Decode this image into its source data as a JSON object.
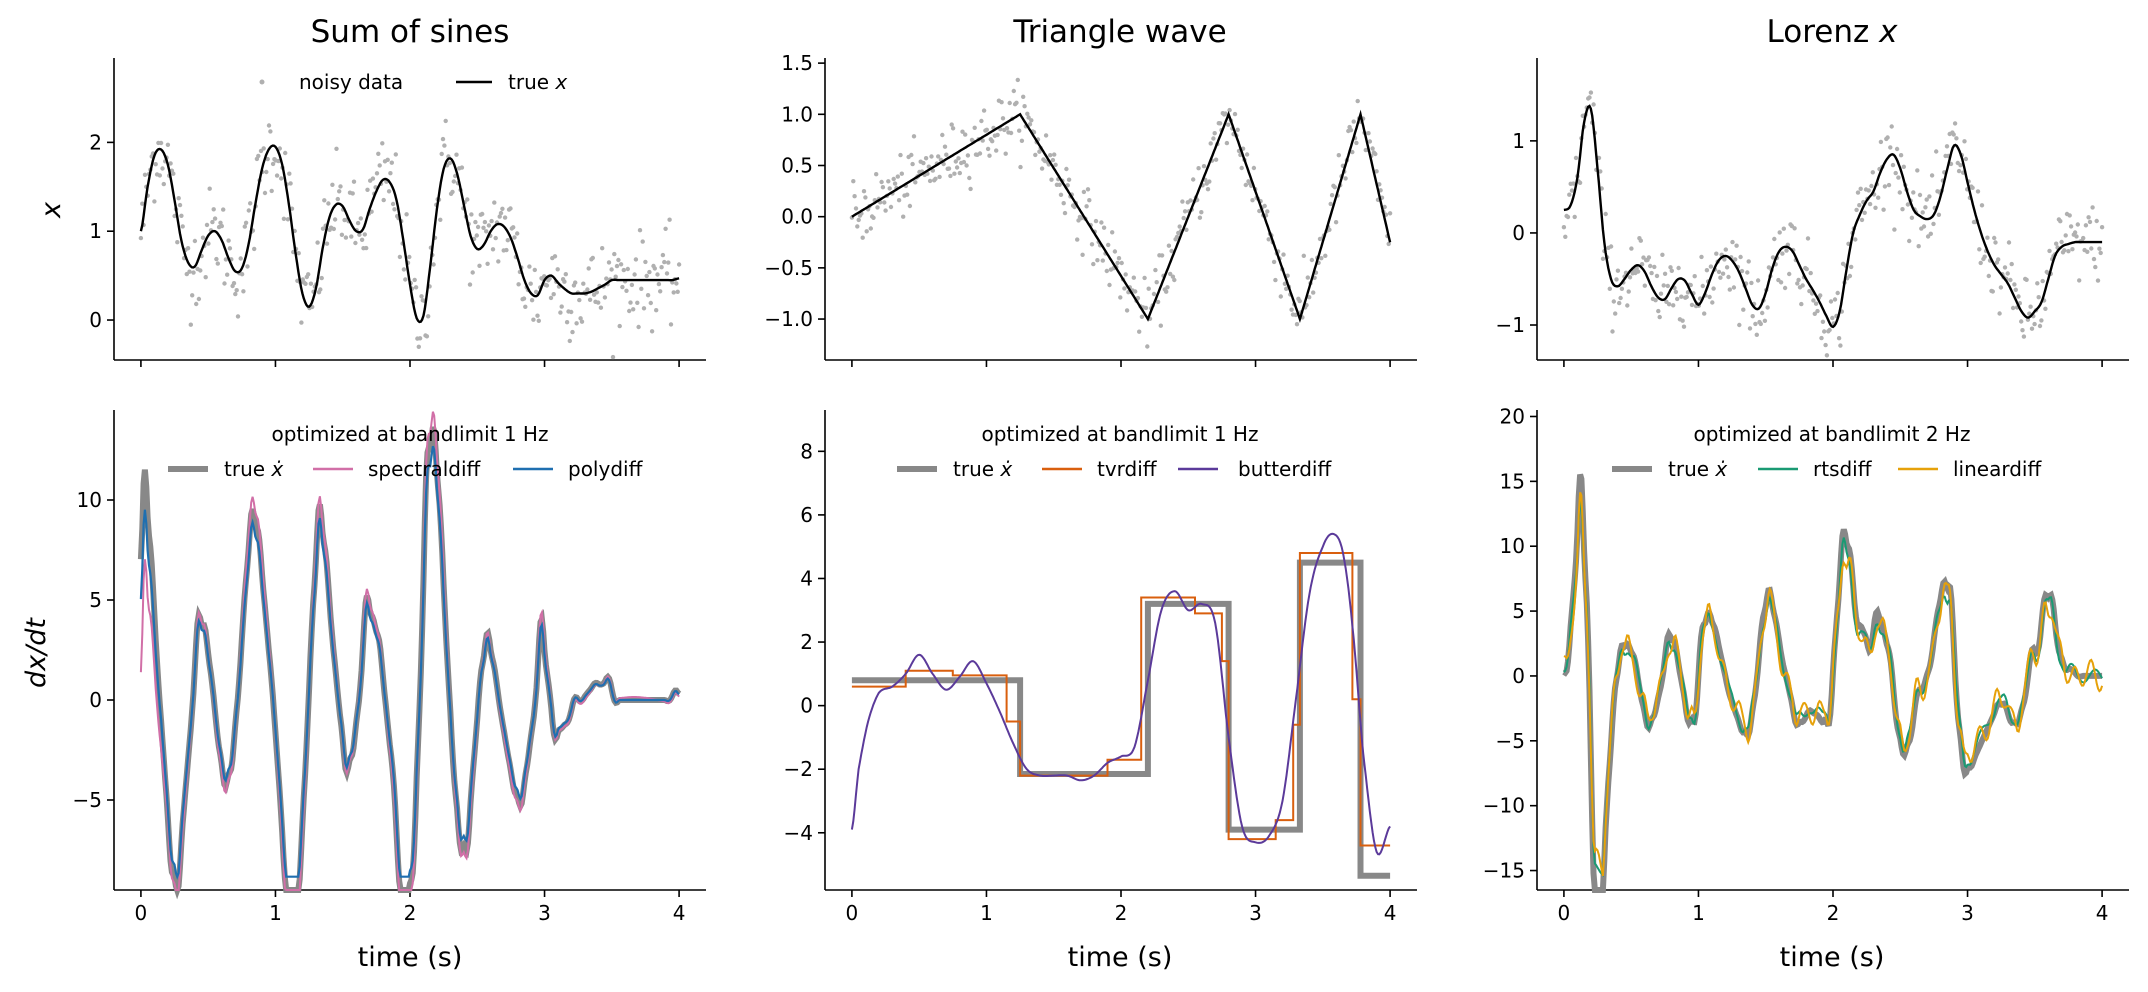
{
  "chart_data": [
    {
      "id": "sum-of-sines-x",
      "type": "line",
      "title": "Sum of sines",
      "ylabel": "x",
      "xlabel": "",
      "xlim": [
        -0.2,
        4.2
      ],
      "ylim": [
        -0.45,
        2.95
      ],
      "xticks": [
        0,
        1,
        2,
        3,
        4
      ],
      "xticklabels_visible": false,
      "yticks": [
        0,
        1,
        2
      ],
      "legend": {
        "placement": "top-center",
        "title": ""
      },
      "series": [
        {
          "name": "noisy data",
          "kind": "scatter",
          "color": "#b0b0b0",
          "note": "noisy samples scattered around true x",
          "function": "sum_of_sines",
          "noise": 0.25
        },
        {
          "name": "true x",
          "kind": "line",
          "color": "#000000",
          "x": [
            0,
            0.05,
            0.1,
            0.15,
            0.2,
            0.25,
            0.3,
            0.35,
            0.4,
            0.45,
            0.5,
            0.55,
            0.6,
            0.65,
            0.7,
            0.75,
            0.8,
            0.85,
            0.9,
            0.95,
            1.0,
            1.05,
            1.1,
            1.15,
            1.2,
            1.25,
            1.3,
            1.35,
            1.4,
            1.45,
            1.5,
            1.55,
            1.6,
            1.65,
            1.7,
            1.75,
            1.8,
            1.85,
            1.9,
            1.95,
            2.0,
            2.05,
            2.1,
            2.15,
            2.2,
            2.25,
            2.3,
            2.35,
            2.4,
            2.45,
            2.5,
            2.55,
            2.6,
            2.65,
            2.7,
            2.75,
            2.8,
            2.85,
            2.9,
            2.95,
            3.0,
            3.05,
            3.1,
            3.15,
            3.2,
            3.25,
            3.3,
            3.35,
            3.4,
            3.45,
            3.5,
            3.55,
            3.6,
            3.65,
            3.7,
            3.75,
            3.8,
            3.85,
            3.9,
            3.95,
            4.0
          ],
          "y": [
            1.0,
            1.5,
            1.85,
            1.92,
            1.75,
            1.35,
            0.9,
            0.65,
            0.6,
            0.78,
            0.95,
            1.0,
            0.9,
            0.7,
            0.55,
            0.58,
            0.85,
            1.3,
            1.7,
            1.92,
            1.95,
            1.75,
            1.3,
            0.75,
            0.3,
            0.15,
            0.35,
            0.8,
            1.15,
            1.3,
            1.28,
            1.12,
            1.0,
            1.02,
            1.25,
            1.45,
            1.58,
            1.55,
            1.35,
            0.9,
            0.4,
            0.02,
            0.05,
            0.6,
            1.25,
            1.7,
            1.82,
            1.65,
            1.3,
            0.95,
            0.8,
            0.85,
            1.0,
            1.08,
            1.05,
            0.92,
            0.7,
            0.45,
            0.3,
            0.28,
            0.45,
            0.5,
            0.42,
            0.35,
            0.3,
            0.3,
            0.3,
            0.32,
            0.36,
            0.4,
            0.45,
            0.45,
            0.45,
            0.45,
            0.45,
            0.45,
            0.45,
            0.45,
            0.45,
            0.45,
            0.47
          ]
        }
      ]
    },
    {
      "id": "triangle-x",
      "type": "line",
      "title": "Triangle wave",
      "ylabel": "",
      "xlabel": "",
      "xlim": [
        -0.2,
        4.2
      ],
      "ylim": [
        -1.4,
        1.55
      ],
      "xticks": [
        0,
        1,
        2,
        3,
        4
      ],
      "xticklabels_visible": false,
      "yticks": [
        -1.0,
        -0.5,
        0.0,
        0.5,
        1.0,
        1.5
      ],
      "yticklabels": [
        "−1.0",
        "−0.5",
        "0.0",
        "0.5",
        "1.0",
        "1.5"
      ],
      "series": [
        {
          "name": "noisy data",
          "kind": "scatter",
          "color": "#b0b0b0",
          "function": "triangle",
          "noise": 0.15
        },
        {
          "name": "true x",
          "kind": "line",
          "color": "#000000",
          "x": [
            0,
            1.25,
            2.2,
            2.8,
            3.33,
            3.78,
            4.0
          ],
          "y": [
            0,
            1.0,
            -1.0,
            1.0,
            -1.0,
            1.0,
            -0.25
          ]
        }
      ]
    },
    {
      "id": "lorenz-x",
      "type": "line",
      "title": "Lorenz x",
      "ylabel": "",
      "xlabel": "",
      "xlim": [
        -0.2,
        4.2
      ],
      "ylim": [
        -1.38,
        1.9
      ],
      "xticks": [
        0,
        1,
        2,
        3,
        4
      ],
      "xticklabels_visible": false,
      "yticks": [
        -1,
        0,
        1
      ],
      "yticklabels": [
        "−1",
        "0",
        "1"
      ],
      "series": [
        {
          "name": "noisy data",
          "kind": "scatter",
          "color": "#b0b0b0",
          "function": "lorenz",
          "noise": 0.2
        },
        {
          "name": "true x",
          "kind": "line",
          "color": "#000000",
          "x": [
            0,
            0.05,
            0.1,
            0.15,
            0.2,
            0.25,
            0.3,
            0.35,
            0.4,
            0.45,
            0.5,
            0.55,
            0.6,
            0.65,
            0.7,
            0.75,
            0.8,
            0.85,
            0.9,
            0.95,
            1.0,
            1.05,
            1.1,
            1.15,
            1.2,
            1.25,
            1.3,
            1.35,
            1.4,
            1.45,
            1.5,
            1.55,
            1.6,
            1.65,
            1.7,
            1.75,
            1.8,
            1.85,
            1.9,
            1.95,
            2.0,
            2.05,
            2.1,
            2.15,
            2.2,
            2.25,
            2.3,
            2.35,
            2.4,
            2.45,
            2.5,
            2.55,
            2.6,
            2.65,
            2.7,
            2.75,
            2.8,
            2.85,
            2.9,
            2.95,
            3.0,
            3.05,
            3.1,
            3.15,
            3.2,
            3.25,
            3.3,
            3.35,
            3.4,
            3.45,
            3.5,
            3.55,
            3.6,
            3.65,
            3.7,
            3.75,
            3.8,
            3.85,
            3.9,
            3.95,
            4.0
          ],
          "y": [
            0.25,
            0.3,
            0.6,
            1.2,
            1.35,
            0.7,
            -0.1,
            -0.5,
            -0.58,
            -0.5,
            -0.4,
            -0.35,
            -0.42,
            -0.58,
            -0.7,
            -0.72,
            -0.6,
            -0.5,
            -0.52,
            -0.66,
            -0.78,
            -0.65,
            -0.45,
            -0.3,
            -0.25,
            -0.3,
            -0.42,
            -0.6,
            -0.78,
            -0.82,
            -0.65,
            -0.38,
            -0.2,
            -0.15,
            -0.2,
            -0.35,
            -0.5,
            -0.62,
            -0.75,
            -0.9,
            -1.02,
            -0.85,
            -0.4,
            0.0,
            0.2,
            0.35,
            0.45,
            0.65,
            0.8,
            0.85,
            0.7,
            0.45,
            0.25,
            0.18,
            0.15,
            0.2,
            0.4,
            0.7,
            0.95,
            0.85,
            0.55,
            0.25,
            0.0,
            -0.2,
            -0.35,
            -0.45,
            -0.55,
            -0.7,
            -0.85,
            -0.92,
            -0.85,
            -0.75,
            -0.5,
            -0.25,
            -0.15,
            -0.12,
            -0.1,
            -0.1,
            -0.1,
            -0.1,
            -0.1
          ]
        }
      ]
    },
    {
      "id": "sum-of-sines-dxdt",
      "type": "line",
      "title": "",
      "ylabel": "dx/dt",
      "xlabel": "time (s)",
      "xlim": [
        -0.2,
        4.2
      ],
      "ylim": [
        -9.5,
        14.5
      ],
      "xticks": [
        0,
        1,
        2,
        3,
        4
      ],
      "yticks": [
        -5,
        0,
        5,
        10
      ],
      "yticklabels": [
        "−5",
        "0",
        "5",
        "10"
      ],
      "legend": {
        "placement": "top-center",
        "title": "optimized at bandlimit 1 Hz"
      },
      "series": [
        {
          "name": "true ẋ",
          "color": "#888888",
          "width": 6
        },
        {
          "name": "spectraldiff",
          "color": "#d16fa7",
          "width": 2
        },
        {
          "name": "polydiff",
          "color": "#1f6fb0",
          "width": 2
        }
      ]
    },
    {
      "id": "triangle-dxdt",
      "type": "line",
      "title": "",
      "ylabel": "",
      "xlabel": "time (s)",
      "xlim": [
        -0.2,
        4.2
      ],
      "ylim": [
        -5.8,
        9.3
      ],
      "xticks": [
        0,
        1,
        2,
        3,
        4
      ],
      "yticks": [
        -4,
        -2,
        0,
        2,
        4,
        6,
        8
      ],
      "yticklabels": [
        "−4",
        "−2",
        "0",
        "2",
        "4",
        "6",
        "8"
      ],
      "legend": {
        "placement": "top-center",
        "title": "optimized at bandlimit 1 Hz"
      },
      "series": [
        {
          "name": "true ẋ",
          "color": "#888888",
          "width": 6,
          "steps_x": [
            0,
            1.25,
            2.2,
            2.8,
            3.33,
            3.78,
            4.0
          ],
          "steps_y": [
            0.8,
            -2.15,
            3.2,
            -3.9,
            4.5,
            -5.35
          ]
        },
        {
          "name": "tvrdiff",
          "color": "#d95f0e",
          "width": 2
        },
        {
          "name": "butterdiff",
          "color": "#5b3a9a",
          "width": 2
        }
      ]
    },
    {
      "id": "lorenz-dxdt",
      "type": "line",
      "title": "",
      "ylabel": "",
      "xlabel": "time (s)",
      "xlim": [
        -0.2,
        4.2
      ],
      "ylim": [
        -16.5,
        20.5
      ],
      "xticks": [
        0,
        1,
        2,
        3,
        4
      ],
      "yticks": [
        -15,
        -10,
        -5,
        0,
        5,
        10,
        15,
        20
      ],
      "yticklabels": [
        "−15",
        "−10",
        "−5",
        "0",
        "5",
        "10",
        "15",
        "20"
      ],
      "legend": {
        "placement": "top-center",
        "title": "optimized at bandlimit 2 Hz"
      },
      "series": [
        {
          "name": "true ẋ",
          "color": "#888888",
          "width": 6
        },
        {
          "name": "rtsdiff",
          "color": "#1a9a73",
          "width": 2
        },
        {
          "name": "lineardiff",
          "color": "#e6a10a",
          "width": 2
        }
      ]
    }
  ],
  "labels": {
    "title1": "Sum of sines",
    "title2": "Triangle wave",
    "title3_prefix": "Lorenz ",
    "title3_var": "x",
    "ylabel_top": "x",
    "ylabel_bottom": "dx/dt",
    "xlabel": "time (s)",
    "legend_top_noisy": "noisy data",
    "legend_top_true_prefix": "true ",
    "legend_top_true_var": "x",
    "legend_b1_title": "optimized at bandlimit 1 Hz",
    "legend_b2_title": "optimized at bandlimit 1 Hz",
    "legend_b3_title": "optimized at bandlimit 2 Hz",
    "true_xdot_prefix": "true ",
    "true_xdot_var": "ẋ",
    "spectraldiff": "spectraldiff",
    "polydiff": "polydiff",
    "tvrdiff": "tvrdiff",
    "butterdiff": "butterdiff",
    "rtsdiff": "rtsdiff",
    "lineardiff": "lineardiff"
  },
  "colors": {
    "noisy": "#b0b0b0",
    "true_line": "#000000",
    "true_xdot": "#888888",
    "spectraldiff": "#d16fa7",
    "polydiff": "#1f6fb0",
    "tvrdiff": "#d95f0e",
    "butterdiff": "#5b3a9a",
    "rtsdiff": "#1a9a73",
    "lineardiff": "#e6a10a"
  }
}
